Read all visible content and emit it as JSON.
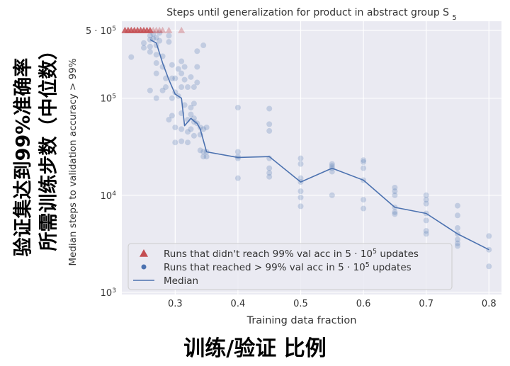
{
  "chinese_labels": {
    "vertical_line1": "验证集达到99%准确率",
    "vertical_line2": "所需训练步数（中位数）",
    "bottom": "训练/验证 比例"
  },
  "chart_data": {
    "type": "scatter",
    "title": "Steps until generalization for product in abstract group S",
    "title_subscript": "5",
    "xlabel": "Training data fraction",
    "ylabel": "Median steps to validation accuracy > 99%",
    "xlim": [
      0.215,
      0.82
    ],
    "ylim": [
      950,
      620000
    ],
    "yscale": "log",
    "grid": true,
    "x_ticks": [
      {
        "value": 0.3,
        "label": "0.3"
      },
      {
        "value": 0.4,
        "label": "0.4"
      },
      {
        "value": 0.5,
        "label": "0.5"
      },
      {
        "value": 0.6,
        "label": "0.6"
      },
      {
        "value": 0.7,
        "label": "0.7"
      },
      {
        "value": 0.8,
        "label": "0.8"
      }
    ],
    "y_ticks": [
      {
        "value": 1000,
        "base": "10",
        "exp": "3"
      },
      {
        "value": 10000,
        "base": "10",
        "exp": "4"
      },
      {
        "value": 100000,
        "base": "10",
        "exp": "5"
      },
      {
        "value": 500000,
        "mant": "5 · 10",
        "exp": "5"
      }
    ],
    "colors": {
      "plot_bg": "#eaeaf2",
      "grid": "#ffffff",
      "scatter": "#4c72b0",
      "median": "#4c72b0",
      "triangle": "#c44e52"
    },
    "legend": {
      "position": "lower-left",
      "entries": [
        {
          "marker": "triangle",
          "text": "Runs that didn't reach 99% val acc in 5 · 10",
          "sup": "5",
          "tail": " updates"
        },
        {
          "marker": "dot",
          "text": "Runs that reached > 99% val acc in 5 · 10",
          "sup": "5",
          "tail": " updates"
        },
        {
          "marker": "line",
          "text": "Median",
          "sup": "",
          "tail": ""
        }
      ]
    },
    "not_reached": {
      "name": "Runs that didn't reach 99% val acc in 5 · 10^5 updates",
      "y": 500000,
      "x": [
        0.22,
        0.225,
        0.23,
        0.235,
        0.24,
        0.245,
        0.25,
        0.255,
        0.26,
        0.265,
        0.27,
        0.275,
        0.28,
        0.29,
        0.31
      ]
    },
    "reached": {
      "name": "Runs that reached > 99% val acc in 5 · 10^5 updates",
      "points": [
        [
          0.23,
          265000
        ],
        [
          0.25,
          370000
        ],
        [
          0.25,
          330000
        ],
        [
          0.26,
          440000
        ],
        [
          0.26,
          400000
        ],
        [
          0.26,
          340000
        ],
        [
          0.26,
          300000
        ],
        [
          0.26,
          120000
        ],
        [
          0.265,
          460000
        ],
        [
          0.265,
          410000
        ],
        [
          0.27,
          420000
        ],
        [
          0.27,
          350000
        ],
        [
          0.27,
          280000
        ],
        [
          0.27,
          230000
        ],
        [
          0.27,
          180000
        ],
        [
          0.27,
          100000
        ],
        [
          0.275,
          470000
        ],
        [
          0.275,
          390000
        ],
        [
          0.28,
          270000
        ],
        [
          0.28,
          210000
        ],
        [
          0.28,
          120000
        ],
        [
          0.285,
          160000
        ],
        [
          0.285,
          130000
        ],
        [
          0.29,
          440000
        ],
        [
          0.29,
          380000
        ],
        [
          0.29,
          60000
        ],
        [
          0.295,
          220000
        ],
        [
          0.295,
          160000
        ],
        [
          0.295,
          100000
        ],
        [
          0.295,
          66000
        ],
        [
          0.3,
          160000
        ],
        [
          0.3,
          115000
        ],
        [
          0.3,
          50000
        ],
        [
          0.3,
          35000
        ],
        [
          0.305,
          200000
        ],
        [
          0.305,
          105000
        ],
        [
          0.31,
          240000
        ],
        [
          0.31,
          180000
        ],
        [
          0.31,
          130000
        ],
        [
          0.31,
          70000
        ],
        [
          0.31,
          48000
        ],
        [
          0.31,
          36000
        ],
        [
          0.315,
          210000
        ],
        [
          0.315,
          155000
        ],
        [
          0.315,
          85000
        ],
        [
          0.32,
          130000
        ],
        [
          0.32,
          60000
        ],
        [
          0.32,
          45000
        ],
        [
          0.32,
          35000
        ],
        [
          0.325,
          165000
        ],
        [
          0.325,
          80000
        ],
        [
          0.325,
          68000
        ],
        [
          0.325,
          48000
        ],
        [
          0.33,
          130000
        ],
        [
          0.33,
          88000
        ],
        [
          0.33,
          62000
        ],
        [
          0.33,
          57000
        ],
        [
          0.33,
          41000
        ],
        [
          0.335,
          305000
        ],
        [
          0.335,
          210000
        ],
        [
          0.335,
          145000
        ],
        [
          0.335,
          55000
        ],
        [
          0.34,
          50000
        ],
        [
          0.34,
          42000
        ],
        [
          0.34,
          29000
        ],
        [
          0.345,
          350000
        ],
        [
          0.345,
          48000
        ],
        [
          0.345,
          28000
        ],
        [
          0.345,
          25000
        ],
        [
          0.35,
          50000
        ],
        [
          0.35,
          28000
        ],
        [
          0.35,
          25000
        ],
        [
          0.4,
          80000
        ],
        [
          0.4,
          28000
        ],
        [
          0.4,
          25000
        ],
        [
          0.4,
          24000
        ],
        [
          0.4,
          15000
        ],
        [
          0.45,
          78000
        ],
        [
          0.45,
          54000
        ],
        [
          0.45,
          46000
        ],
        [
          0.45,
          24000
        ],
        [
          0.45,
          19000
        ],
        [
          0.45,
          17000
        ],
        [
          0.45,
          15500
        ],
        [
          0.5,
          24000
        ],
        [
          0.5,
          21000
        ],
        [
          0.5,
          15000
        ],
        [
          0.5,
          13700
        ],
        [
          0.5,
          11000
        ],
        [
          0.5,
          9500
        ],
        [
          0.5,
          7700
        ],
        [
          0.55,
          21000
        ],
        [
          0.55,
          20000
        ],
        [
          0.55,
          19000
        ],
        [
          0.55,
          17500
        ],
        [
          0.55,
          10000
        ],
        [
          0.6,
          23000
        ],
        [
          0.6,
          22000
        ],
        [
          0.6,
          19000
        ],
        [
          0.6,
          14300
        ],
        [
          0.6,
          9000
        ],
        [
          0.6,
          7300
        ],
        [
          0.65,
          12000
        ],
        [
          0.65,
          11000
        ],
        [
          0.65,
          10000
        ],
        [
          0.65,
          7500
        ],
        [
          0.65,
          6700
        ],
        [
          0.65,
          6400
        ],
        [
          0.7,
          10000
        ],
        [
          0.7,
          9000
        ],
        [
          0.7,
          8200
        ],
        [
          0.7,
          6500
        ],
        [
          0.7,
          5500
        ],
        [
          0.7,
          4300
        ],
        [
          0.7,
          4000
        ],
        [
          0.75,
          7800
        ],
        [
          0.75,
          6200
        ],
        [
          0.75,
          4600
        ],
        [
          0.75,
          4000
        ],
        [
          0.75,
          3500
        ],
        [
          0.75,
          3200
        ],
        [
          0.75,
          3000
        ],
        [
          0.8,
          3800
        ],
        [
          0.8,
          2750
        ],
        [
          0.8,
          1850
        ]
      ]
    },
    "median": {
      "name": "Median",
      "points": [
        [
          0.26,
          400000
        ],
        [
          0.27,
          370000
        ],
        [
          0.28,
          230000
        ],
        [
          0.29,
          155000
        ],
        [
          0.3,
          110000
        ],
        [
          0.31,
          100000
        ],
        [
          0.315,
          52000
        ],
        [
          0.325,
          62000
        ],
        [
          0.33,
          58000
        ],
        [
          0.335,
          55000
        ],
        [
          0.34,
          48000
        ],
        [
          0.35,
          28000
        ],
        [
          0.4,
          24500
        ],
        [
          0.45,
          25000
        ],
        [
          0.5,
          13700
        ],
        [
          0.55,
          19000
        ],
        [
          0.6,
          14300
        ],
        [
          0.65,
          7500
        ],
        [
          0.7,
          6500
        ],
        [
          0.75,
          4000
        ],
        [
          0.8,
          2750
        ]
      ]
    }
  }
}
